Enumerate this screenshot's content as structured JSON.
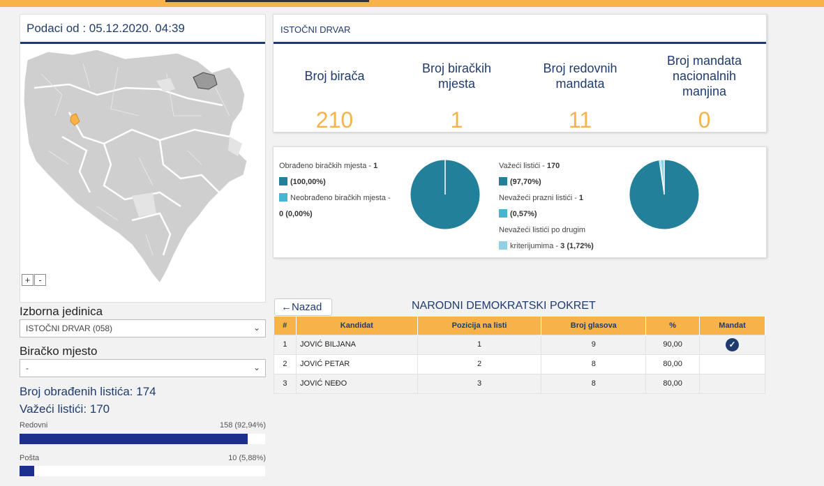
{
  "left": {
    "date_label": "Podaci od : 05.12.2020. 04:39",
    "zoom_in": "+",
    "zoom_out": "-",
    "izborna_label": "Izborna jedinica",
    "izborna_value": "ISTOČNI DRVAR (058)",
    "biracko_label": "Biračko mjesto",
    "biracko_value": "-",
    "obradjeni": "Broj obrađenih listića: 174",
    "vazeci": "Važeći listići: 170",
    "bars": [
      {
        "label": "Redovni",
        "value": "158 (92,94%)",
        "fraction": 0.9294
      },
      {
        "label": "Pošta",
        "value": "10 (5,88%)",
        "fraction": 0.0588
      }
    ]
  },
  "header": {
    "unit_name": "ISTOČNI DRVAR",
    "stats": [
      {
        "title": "Broj birača",
        "value": "210"
      },
      {
        "title": "Broj biračkih mjesta",
        "value": "1"
      },
      {
        "title": "Broj redovnih mandata",
        "value": "11"
      },
      {
        "title": "Broj mandata nacionalnih manjina",
        "value": "0"
      }
    ]
  },
  "pies": {
    "left_legend": [
      {
        "text": "Obrađeno biračkih mjesta - ",
        "bold": "1",
        "pct": "(100,00%)",
        "color": "#22809a"
      },
      {
        "text": "Neobrađeno biračkih mjesta - ",
        "bold": "0",
        "pct": "(0,00%)",
        "color": "#45b5d0"
      }
    ],
    "right_legend": [
      {
        "text": "Važeći listići - ",
        "bold": "170",
        "pct": "(97,70%)",
        "color": "#22809a"
      },
      {
        "text": "Nevažeći prazni listići - ",
        "bold": "1",
        "pct": "(0,57%)",
        "color": "#45b5d0"
      },
      {
        "text": "Nevažeći listići po drugim kriterijumima - ",
        "bold": "3",
        "pct": "(1,72%)",
        "color": "#8fd2e3"
      }
    ],
    "left_values": [
      1,
      0
    ],
    "right_values": [
      170,
      1,
      3
    ]
  },
  "results": {
    "back_label": "Nazad",
    "party": "NARODNI DEMOKRATSKI POKRET",
    "columns": [
      "#",
      "Kandidat",
      "Pozicija na listi",
      "Broj glasova",
      "%",
      "Mandat"
    ],
    "rows": [
      {
        "n": "1",
        "name": "JOVIĆ BILJANA",
        "pos": "1",
        "votes": "9",
        "pct": "90,00",
        "mandat": true
      },
      {
        "n": "2",
        "name": "JOVIĆ PETAR",
        "pos": "2",
        "votes": "8",
        "pct": "80,00",
        "mandat": false
      },
      {
        "n": "3",
        "name": "JOVIĆ NEĐO",
        "pos": "3",
        "votes": "8",
        "pct": "80,00",
        "mandat": false
      }
    ]
  },
  "colors": {
    "accent": "#f7b24a",
    "navy": "#1f3b6e",
    "teal": "#22809a",
    "bar": "#1c2f8a"
  }
}
